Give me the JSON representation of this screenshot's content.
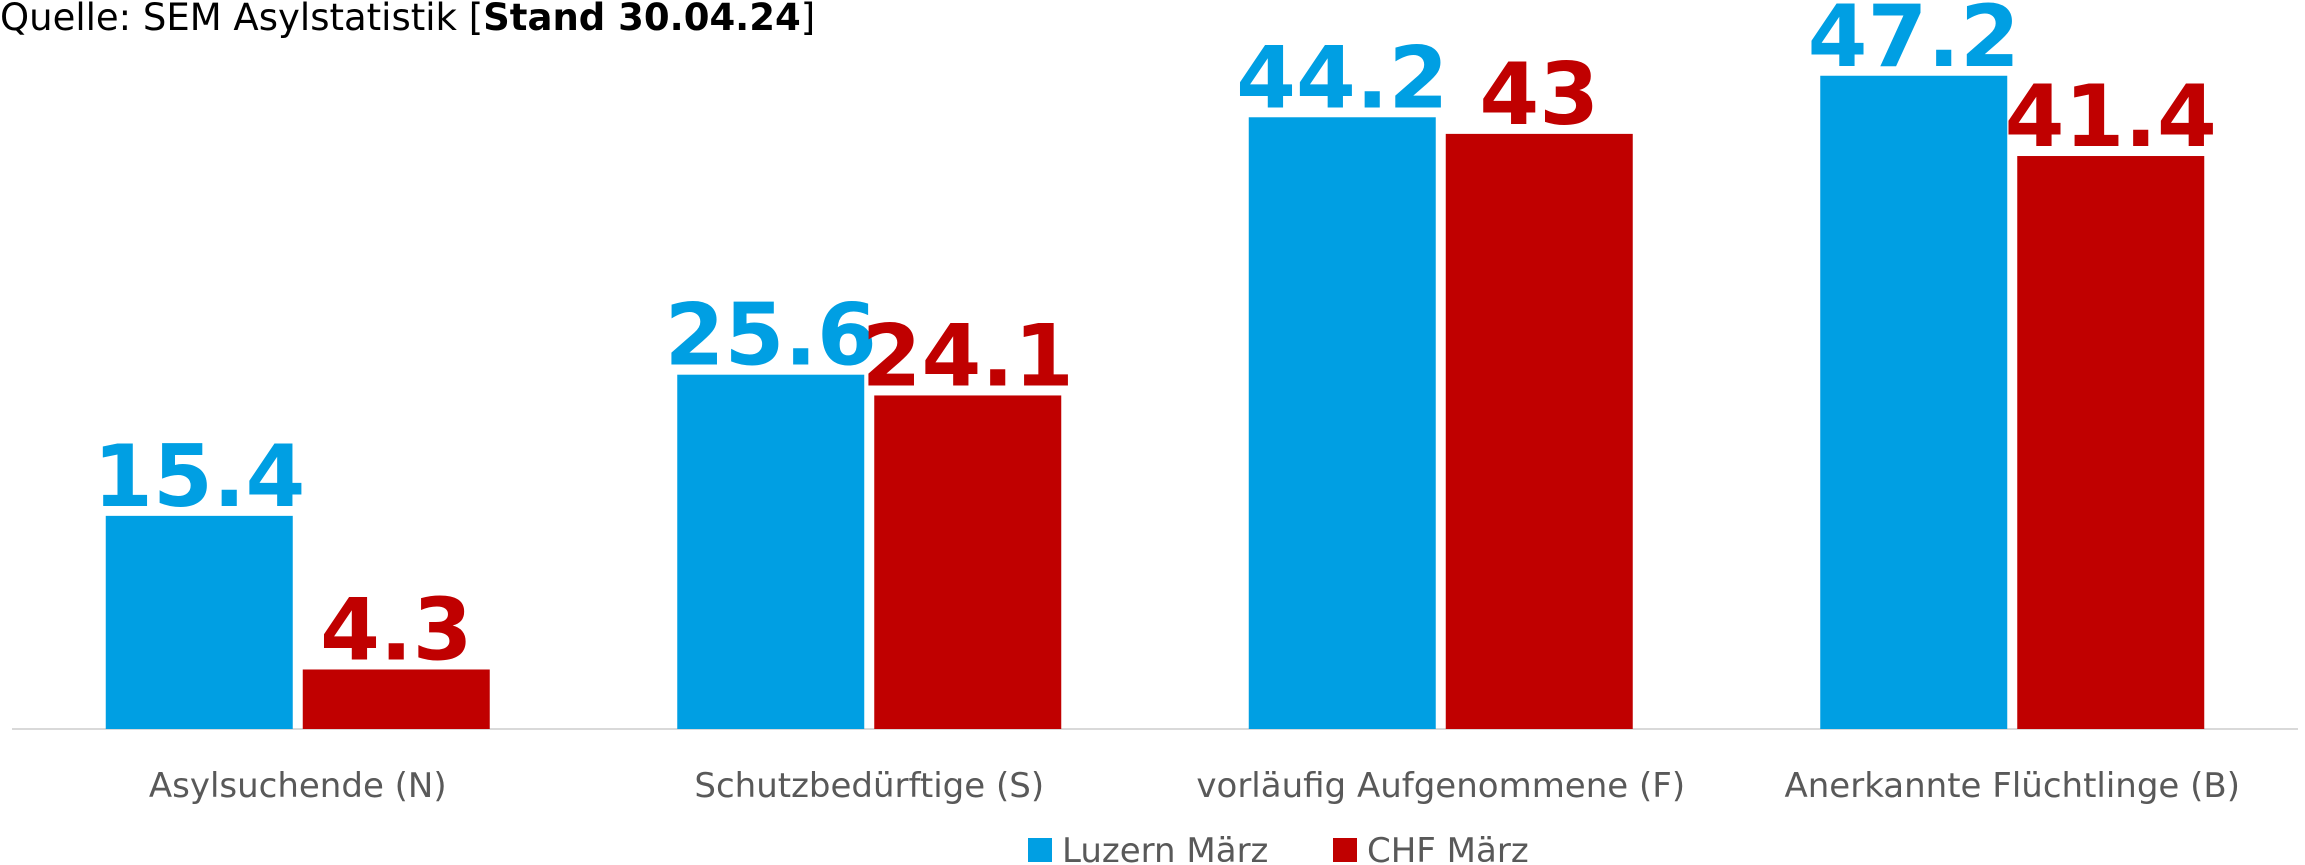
{
  "chart_data": {
    "type": "bar",
    "title_parts": [
      {
        "text": "Quelle: SEM Asylstatistik [",
        "bold": false
      },
      {
        "text": "Stand 30.04.24",
        "bold": true
      },
      {
        "text": "]",
        "bold": false
      }
    ],
    "categories": [
      "Asylsuchende (N)",
      "Schutzbedürftige (S)",
      "vorläufig Aufgenommene (F)",
      "Anerkannte Flüchtlinge (B)"
    ],
    "series": [
      {
        "name": "Luzern März",
        "color": "#009fe3",
        "values": [
          15.4,
          25.6,
          44.2,
          47.2
        ]
      },
      {
        "name": "CHF März",
        "color": "#c00000",
        "values": [
          4.3,
          24.1,
          43,
          41.4
        ]
      }
    ],
    "ylim": [
      0,
      50
    ]
  }
}
